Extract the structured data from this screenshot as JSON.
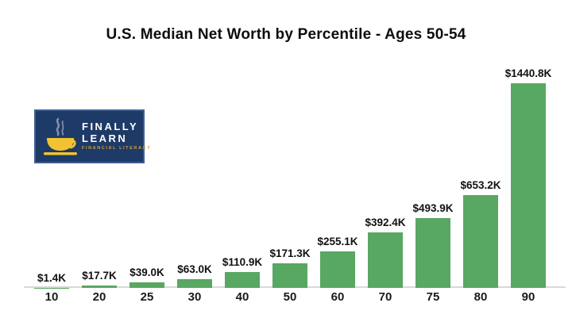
{
  "chart_data": {
    "type": "bar",
    "title": "U.S. Median Net Worth by Percentile - Ages 50-54",
    "categories": [
      "10",
      "20",
      "25",
      "30",
      "40",
      "50",
      "60",
      "70",
      "75",
      "80",
      "90"
    ],
    "values": [
      1.4,
      17.7,
      39.0,
      63.0,
      110.9,
      171.3,
      255.1,
      392.4,
      493.9,
      653.2,
      1440.8
    ],
    "value_labels": [
      "$1.4K",
      "$17.7K",
      "$39.0K",
      "$63.0K",
      "$110.9K",
      "$171.3K",
      "$255.1K",
      "$392.4K",
      "$493.9K",
      "$653.2K",
      "$1440.8K"
    ],
    "unit": "thousands of USD",
    "xlabel": "",
    "ylabel": "",
    "ylim": [
      0,
      1500
    ],
    "grid": false,
    "legend": "none",
    "bar_color": "#58a762",
    "axis_color": "#d9d9d9"
  },
  "logo": {
    "line1": "FINALLY",
    "line2": "LEARN",
    "tagline": "FINANCIAL LITERACY",
    "background": "#1e3a66",
    "cup_color": "#f2c230",
    "steam_color": "#7e8fae",
    "text_color": "#ffffff",
    "tagline_color": "#cfa13d"
  }
}
